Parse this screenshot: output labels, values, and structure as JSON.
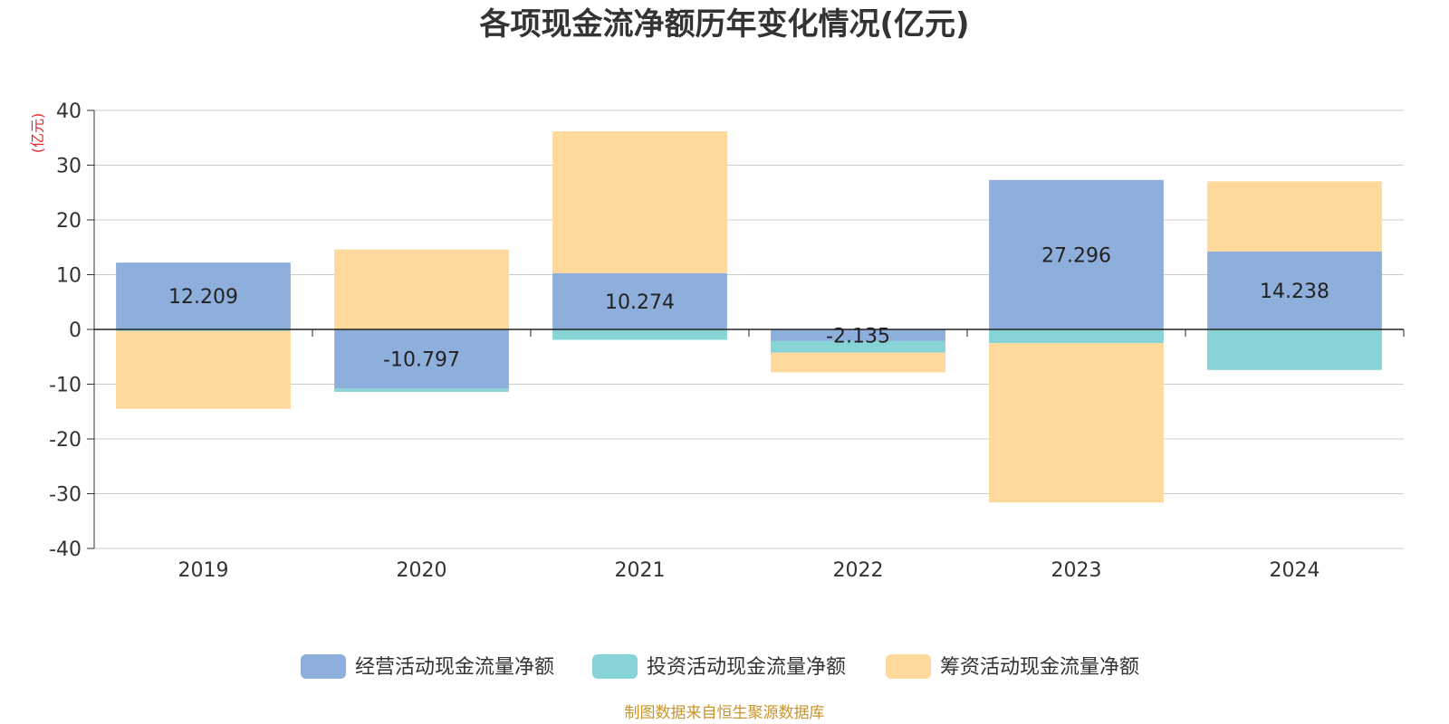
{
  "chart_data": {
    "type": "bar",
    "stacked": true,
    "title": "各项现金流净额历年变化情况(亿元)",
    "ylabel": "(亿元)",
    "xlabel": "",
    "categories": [
      "2019",
      "2020",
      "2021",
      "2022",
      "2023",
      "2024"
    ],
    "ylim": [
      -40,
      40
    ],
    "yticks": [
      40,
      30,
      20,
      10,
      0,
      -10,
      -20,
      -30,
      -40
    ],
    "grid": true,
    "legend_position": "bottom",
    "series": [
      {
        "name": "经营活动现金流量净额",
        "color": "#8eaedb",
        "values": [
          12.209,
          -10.797,
          10.274,
          -2.135,
          27.296,
          14.238
        ],
        "show_labels": true
      },
      {
        "name": "投资活动现金流量净额",
        "color": "#86d4d6",
        "values": [
          -0.3,
          -0.6,
          -1.9,
          -2.1,
          -2.5,
          -7.4
        ],
        "show_labels": false
      },
      {
        "name": "筹资活动现金流量净额",
        "color": "#fed99b",
        "values": [
          -14.2,
          14.6,
          25.9,
          -3.6,
          -29.1,
          12.8
        ],
        "show_labels": false
      }
    ],
    "source": "制图数据来自恒生聚源数据库"
  }
}
